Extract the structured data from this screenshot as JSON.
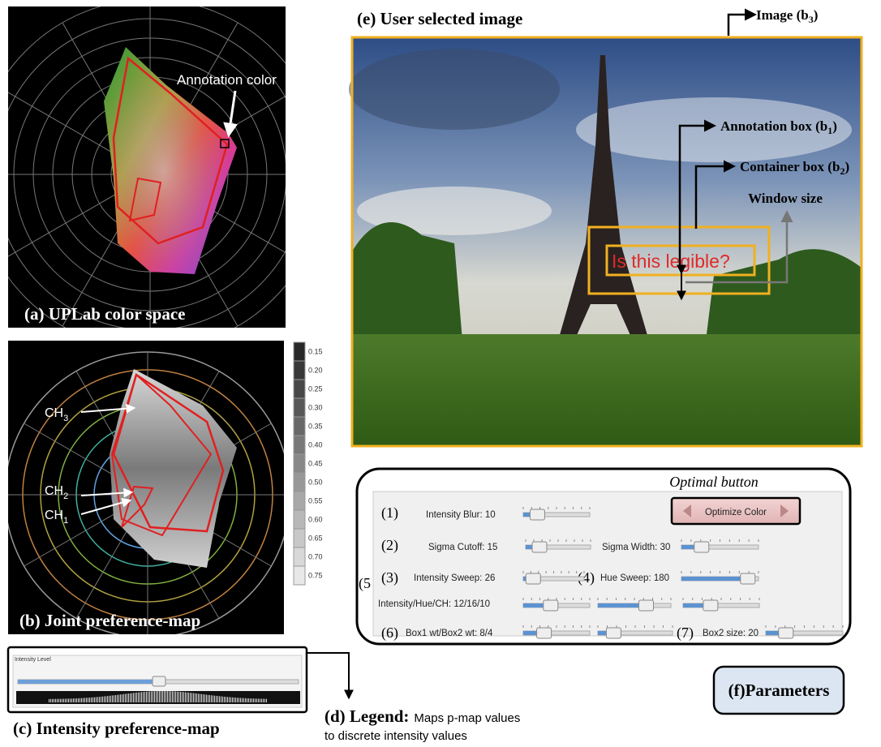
{
  "panel_a": {
    "annotation_label": "Annotation color",
    "caption": "(a) UPLab color space"
  },
  "panel_b": {
    "ch3": {
      "text": "CH",
      "sub": "3"
    },
    "ch2": {
      "text": "CH",
      "sub": "2"
    },
    "ch1": {
      "text": "CH",
      "sub": "1"
    },
    "caption": "(b) Joint preference-map"
  },
  "legend_scale": [
    "0.15",
    "0.20",
    "0.25",
    "0.30",
    "0.35",
    "0.40",
    "0.45",
    "0.50",
    "0.55",
    "0.60",
    "0.65",
    "0.70",
    "0.75"
  ],
  "panel_c": {
    "slider_label": "Intensity Level",
    "caption": "(c) Intensity preference-map"
  },
  "panel_d": {
    "caption": "(d) Legend:",
    "line1": "Maps p-map values",
    "line2": "to discrete intensity values"
  },
  "panel_e": {
    "caption": "(e) User selected image",
    "image_label": {
      "text": "Image (b",
      "sub": "3",
      "tail": ")"
    },
    "annotation_box_label": {
      "text": "Annotation box (b",
      "sub": "1",
      "tail": ")"
    },
    "container_box_label": {
      "text": "Container box (b",
      "sub": "2",
      "tail": ")"
    },
    "window_size_label": "Window size",
    "annotation_text": "Is this legible?"
  },
  "panel_f": {
    "optimal_button_label": "Optimal button",
    "button_text": "Optimize Color",
    "row1": {
      "number": "(1)",
      "label": "Intensity Blur: 10"
    },
    "row2": {
      "number": "(2)",
      "label": "Sigma Cutoff: 15",
      "label2": "Sigma Width: 30"
    },
    "row3": {
      "number": "(3)",
      "label": "Intensity Sweep: 26",
      "number2": "(4)",
      "label2": "Hue Sweep: 180"
    },
    "row5": {
      "number": "(5",
      "label": "Intensity/Hue/CH: 12/16/10"
    },
    "row6": {
      "number": "(6)",
      "label": "Box1 wt/Box2 wt: 8/4",
      "number2": "(7)",
      "label2": "Box2 size: 20"
    },
    "caption": "(f)Parameters"
  }
}
